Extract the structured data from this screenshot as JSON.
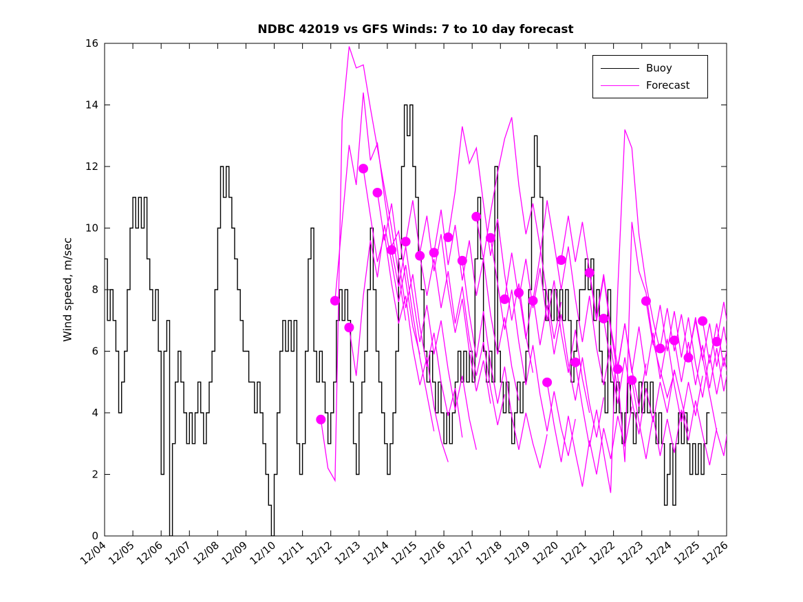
{
  "figure": {
    "background": "#ffffff"
  },
  "chart_data": {
    "type": "line",
    "title": "NDBC 42019 vs GFS Winds: 7 to 10 day forecast",
    "xlabel": "",
    "ylabel": "Wind speed, m/sec",
    "ylim": [
      0,
      16
    ],
    "yticks": [
      0,
      2,
      4,
      6,
      8,
      10,
      12,
      14,
      16
    ],
    "xlim_days": [
      0,
      22
    ],
    "x_tick_labels": [
      "12/04",
      "12/05",
      "12/06",
      "12/07",
      "12/08",
      "12/09",
      "12/10",
      "12/11",
      "12/12",
      "12/13",
      "12/14",
      "12/15",
      "12/16",
      "12/17",
      "12/18",
      "12/19",
      "12/20",
      "12/21",
      "12/22",
      "12/23",
      "12/24",
      "12/25",
      "12/26"
    ],
    "x_tick_rotation_deg": -40,
    "grid": false,
    "legend": {
      "position": "upper right",
      "entries": [
        {
          "label": "Buoy",
          "color": "#000000"
        },
        {
          "label": "Forecast",
          "color": "#ff00ff"
        }
      ]
    },
    "series": [
      {
        "name": "Buoy",
        "color": "#000000",
        "line_width": 1.4,
        "style": "steps",
        "t0": 0,
        "dt": 0.1,
        "values": [
          9,
          7,
          8,
          7,
          6,
          4,
          5,
          6,
          8,
          10,
          11,
          10,
          11,
          10,
          11,
          9,
          8,
          7,
          8,
          6,
          2,
          6,
          7,
          0,
          3,
          5,
          6,
          5,
          4,
          3,
          4,
          3,
          4,
          5,
          4,
          3,
          4,
          5,
          6,
          8,
          10,
          12,
          11,
          12,
          11,
          10,
          9,
          8,
          7,
          6,
          6,
          5,
          5,
          4,
          5,
          4,
          3,
          2,
          1,
          0,
          2,
          4,
          6,
          7,
          6,
          7,
          6,
          7,
          3,
          2,
          3,
          6,
          9,
          10,
          6,
          5,
          6,
          5,
          4,
          3,
          4,
          5,
          7,
          8,
          7,
          8,
          7,
          5,
          3,
          2,
          4,
          5,
          6,
          8,
          10,
          8,
          6,
          5,
          4,
          3,
          2,
          3,
          4,
          6,
          9,
          12,
          14,
          13,
          14,
          12,
          11,
          9,
          8,
          6,
          5,
          6,
          5,
          4,
          5,
          4,
          3,
          4,
          3,
          4,
          5,
          6,
          5,
          6,
          5,
          6,
          5,
          9,
          11,
          9,
          6,
          5,
          6,
          5,
          12,
          6,
          5,
          4,
          5,
          4,
          3,
          4,
          5,
          4,
          5,
          6,
          8,
          11,
          13,
          12,
          11,
          8,
          7,
          8,
          7,
          8,
          7,
          8,
          7,
          8,
          7,
          5,
          6,
          7,
          8,
          8,
          9,
          8,
          9,
          7,
          8,
          6,
          5,
          4,
          8,
          5,
          4,
          5,
          4,
          3,
          4,
          5,
          4,
          3,
          4,
          5,
          4,
          5,
          4,
          5,
          4,
          3,
          4,
          3,
          1,
          2,
          3,
          1,
          3,
          4,
          3,
          4,
          3,
          2,
          3,
          2,
          3,
          2,
          3,
          4,
          4
        ]
      },
      {
        "name": "Forecast",
        "color": "#ff00ff",
        "line_width": 1.3,
        "style": "segments",
        "dt": 0.25,
        "segments": [
          {
            "t0": 7.65,
            "values": [
              3.78,
              2.2,
              1.8,
              13.5,
              15.9,
              15.2,
              15.3,
              13.9,
              12.6,
              11.3,
              10.0,
              8.5,
              7.0
            ]
          },
          {
            "t0": 8.15,
            "values": [
              7.64,
              10.2,
              12.7,
              11.4,
              14.4,
              12.2,
              12.75,
              11.0,
              9.4,
              9.9,
              8.3,
              6.8,
              5.9
            ]
          },
          {
            "t0": 8.65,
            "values": [
              6.77,
              5.2,
              7.8,
              9.6,
              8.4,
              10.1,
              8.9,
              7.6,
              8.8,
              7.2,
              5.8,
              4.6,
              3.4
            ]
          },
          {
            "t0": 9.15,
            "values": [
              11.93,
              10.4,
              8.9,
              9.8,
              8.2,
              6.9,
              7.8,
              6.1,
              4.9,
              5.8,
              4.2,
              3.1,
              2.4
            ]
          },
          {
            "t0": 9.65,
            "values": [
              11.15,
              9.6,
              10.8,
              9.0,
              7.4,
              8.5,
              6.8,
              5.5,
              6.6,
              5.0,
              3.9,
              4.8,
              3.2
            ]
          },
          {
            "t0": 10.15,
            "values": [
              9.29,
              8.1,
              9.4,
              7.8,
              6.3,
              7.5,
              5.9,
              7.0,
              5.4,
              4.1,
              5.2,
              3.8,
              2.8
            ]
          },
          {
            "t0": 10.65,
            "values": [
              9.56,
              10.9,
              9.2,
              10.4,
              8.6,
              9.8,
              8.0,
              6.6,
              7.7,
              6.0,
              4.7,
              5.7,
              4.3
            ]
          },
          {
            "t0": 11.15,
            "values": [
              9.1,
              7.8,
              9.0,
              7.4,
              8.6,
              6.9,
              8.1,
              6.4,
              5.2,
              6.3,
              4.8,
              3.6,
              4.6
            ]
          },
          {
            "t0": 11.65,
            "values": [
              9.2,
              10.6,
              8.8,
              10.1,
              8.3,
              9.6,
              7.8,
              9.0,
              7.2,
              5.9,
              7.1,
              5.5,
              4.4
            ]
          },
          {
            "t0": 12.15,
            "values": [
              9.7,
              11.2,
              13.3,
              12.1,
              12.6,
              10.8,
              9.1,
              10.3,
              8.5,
              7.0,
              8.2,
              6.5,
              5.3
            ]
          },
          {
            "t0": 12.65,
            "values": [
              8.94,
              7.2,
              5.8,
              7.3,
              5.6,
              4.3,
              5.5,
              3.9,
              2.8,
              4.0,
              3.0,
              2.2,
              3.3
            ]
          },
          {
            "t0": 13.15,
            "values": [
              10.37,
              9.0,
              10.5,
              11.8,
              12.9,
              13.6,
              11.4,
              9.8,
              10.8,
              9.4,
              7.8,
              6.4,
              7.6
            ]
          },
          {
            "t0": 13.65,
            "values": [
              9.68,
              8.2,
              6.7,
              8.0,
              6.3,
              4.9,
              6.2,
              4.6,
              3.4,
              4.7,
              3.5,
              2.6,
              3.8
            ]
          },
          {
            "t0": 14.15,
            "values": [
              7.69,
              9.2,
              7.7,
              9.0,
              7.4,
              8.7,
              7.0,
              8.3,
              6.6,
              5.3,
              6.7,
              5.1,
              4.0
            ]
          },
          {
            "t0": 14.65,
            "values": [
              7.9,
              6.4,
              7.8,
              6.2,
              7.5,
              5.9,
              7.2,
              5.6,
              4.4,
              5.8,
              4.3,
              3.2,
              4.5
            ]
          },
          {
            "t0": 15.15,
            "values": [
              7.64,
              9.1,
              10.9,
              9.5,
              8.0,
              9.4,
              7.7,
              6.3,
              7.8,
              6.1,
              4.9,
              6.2,
              4.7
            ]
          },
          {
            "t0": 15.65,
            "values": [
              4.99,
              3.6,
              2.4,
              3.9,
              2.7,
              1.6,
              3.1,
              2.0,
              3.5,
              2.5,
              3.9,
              2.9,
              4.2
            ]
          },
          {
            "t0": 16.15,
            "values": [
              8.96,
              10.4,
              8.9,
              10.2,
              8.6,
              7.1,
              8.5,
              6.8,
              5.5,
              6.9,
              5.4,
              4.2,
              5.6
            ]
          },
          {
            "t0": 16.65,
            "values": [
              5.64,
              4.2,
              2.9,
              4.1,
              2.7,
              1.4,
              8.0,
              13.2,
              12.6,
              9.8,
              8.2,
              7.0,
              6.0
            ]
          },
          {
            "t0": 17.15,
            "values": [
              8.55,
              7.0,
              8.4,
              6.7,
              5.2,
              2.4,
              10.2,
              8.6,
              7.9,
              6.3,
              5.4,
              4.5,
              5.3
            ]
          },
          {
            "t0": 17.65,
            "values": [
              7.06,
              5.6,
              4.3,
              5.8,
              4.4,
              3.3,
              4.8,
              3.7,
              5.0,
              4.0,
              5.4,
              4.4,
              3.4
            ]
          },
          {
            "t0": 18.15,
            "values": [
              5.42,
              6.9,
              5.3,
              6.8,
              5.2,
              6.6,
              5.1,
              6.4,
              4.9,
              3.7,
              5.0,
              3.9,
              5.2
            ]
          },
          {
            "t0": 18.65,
            "values": [
              5.06,
              3.7,
              2.5,
              3.9,
              2.6,
              3.8,
              2.7,
              4.1,
              3.1,
              4.4,
              3.3,
              2.3,
              3.5
            ]
          },
          {
            "t0": 19.15,
            "values": [
              7.63,
              6.2,
              7.5,
              6.0,
              7.3,
              5.8,
              7.1,
              5.6,
              4.5,
              5.9,
              4.6,
              5.8,
              4.8
            ]
          },
          {
            "t0": 19.65,
            "values": [
              6.09,
              7.4,
              6.0,
              7.2,
              5.8,
              7.0,
              5.7,
              6.9,
              5.5,
              6.8,
              5.4,
              4.4,
              5.6
            ]
          },
          {
            "t0": 20.15,
            "values": [
              6.35,
              5.0,
              6.3,
              4.9,
              6.2,
              4.8,
              6.1,
              4.7,
              5.9,
              4.6,
              5.8,
              6.9,
              5.7
            ]
          },
          {
            "t0": 20.65,
            "values": [
              5.79,
              7.1,
              5.8,
              4.6,
              3.4,
              2.6,
              4.2,
              5.5,
              6.8,
              5.6,
              4.8,
              5.9,
              5.0
            ]
          },
          {
            "t0": 21.15,
            "values": [
              6.98,
              5.6,
              6.9,
              5.5,
              6.8,
              5.4,
              6.6,
              7.5,
              6.4,
              5.2,
              6.5,
              5.3,
              6.7
            ]
          },
          {
            "t0": 21.65,
            "values": [
              6.31,
              7.6,
              6.2,
              7.5,
              6.1,
              7.3,
              5.9,
              7.2,
              5.8,
              7.0,
              5.6,
              6.9,
              5.5
            ]
          }
        ]
      }
    ],
    "markers": {
      "series": "Forecast",
      "shape": "circle",
      "radius_px": 7,
      "color": "#ff00ff",
      "points": [
        [
          7.65,
          3.78
        ],
        [
          8.15,
          7.64
        ],
        [
          8.65,
          6.77
        ],
        [
          9.15,
          11.93
        ],
        [
          9.65,
          11.15
        ],
        [
          10.15,
          9.29
        ],
        [
          10.65,
          9.56
        ],
        [
          11.15,
          9.1
        ],
        [
          11.65,
          9.2
        ],
        [
          12.15,
          9.7
        ],
        [
          12.65,
          8.94
        ],
        [
          13.15,
          10.37
        ],
        [
          13.65,
          9.68
        ],
        [
          14.15,
          7.69
        ],
        [
          14.65,
          7.9
        ],
        [
          15.15,
          7.64
        ],
        [
          15.65,
          4.99
        ],
        [
          16.15,
          8.96
        ],
        [
          16.65,
          5.64
        ],
        [
          17.15,
          8.55
        ],
        [
          17.65,
          7.06
        ],
        [
          18.15,
          5.42
        ],
        [
          18.65,
          5.06
        ],
        [
          19.15,
          7.63
        ],
        [
          19.65,
          6.09
        ],
        [
          20.15,
          6.35
        ],
        [
          20.65,
          5.79
        ],
        [
          21.15,
          6.98
        ],
        [
          21.65,
          6.31
        ]
      ]
    }
  }
}
